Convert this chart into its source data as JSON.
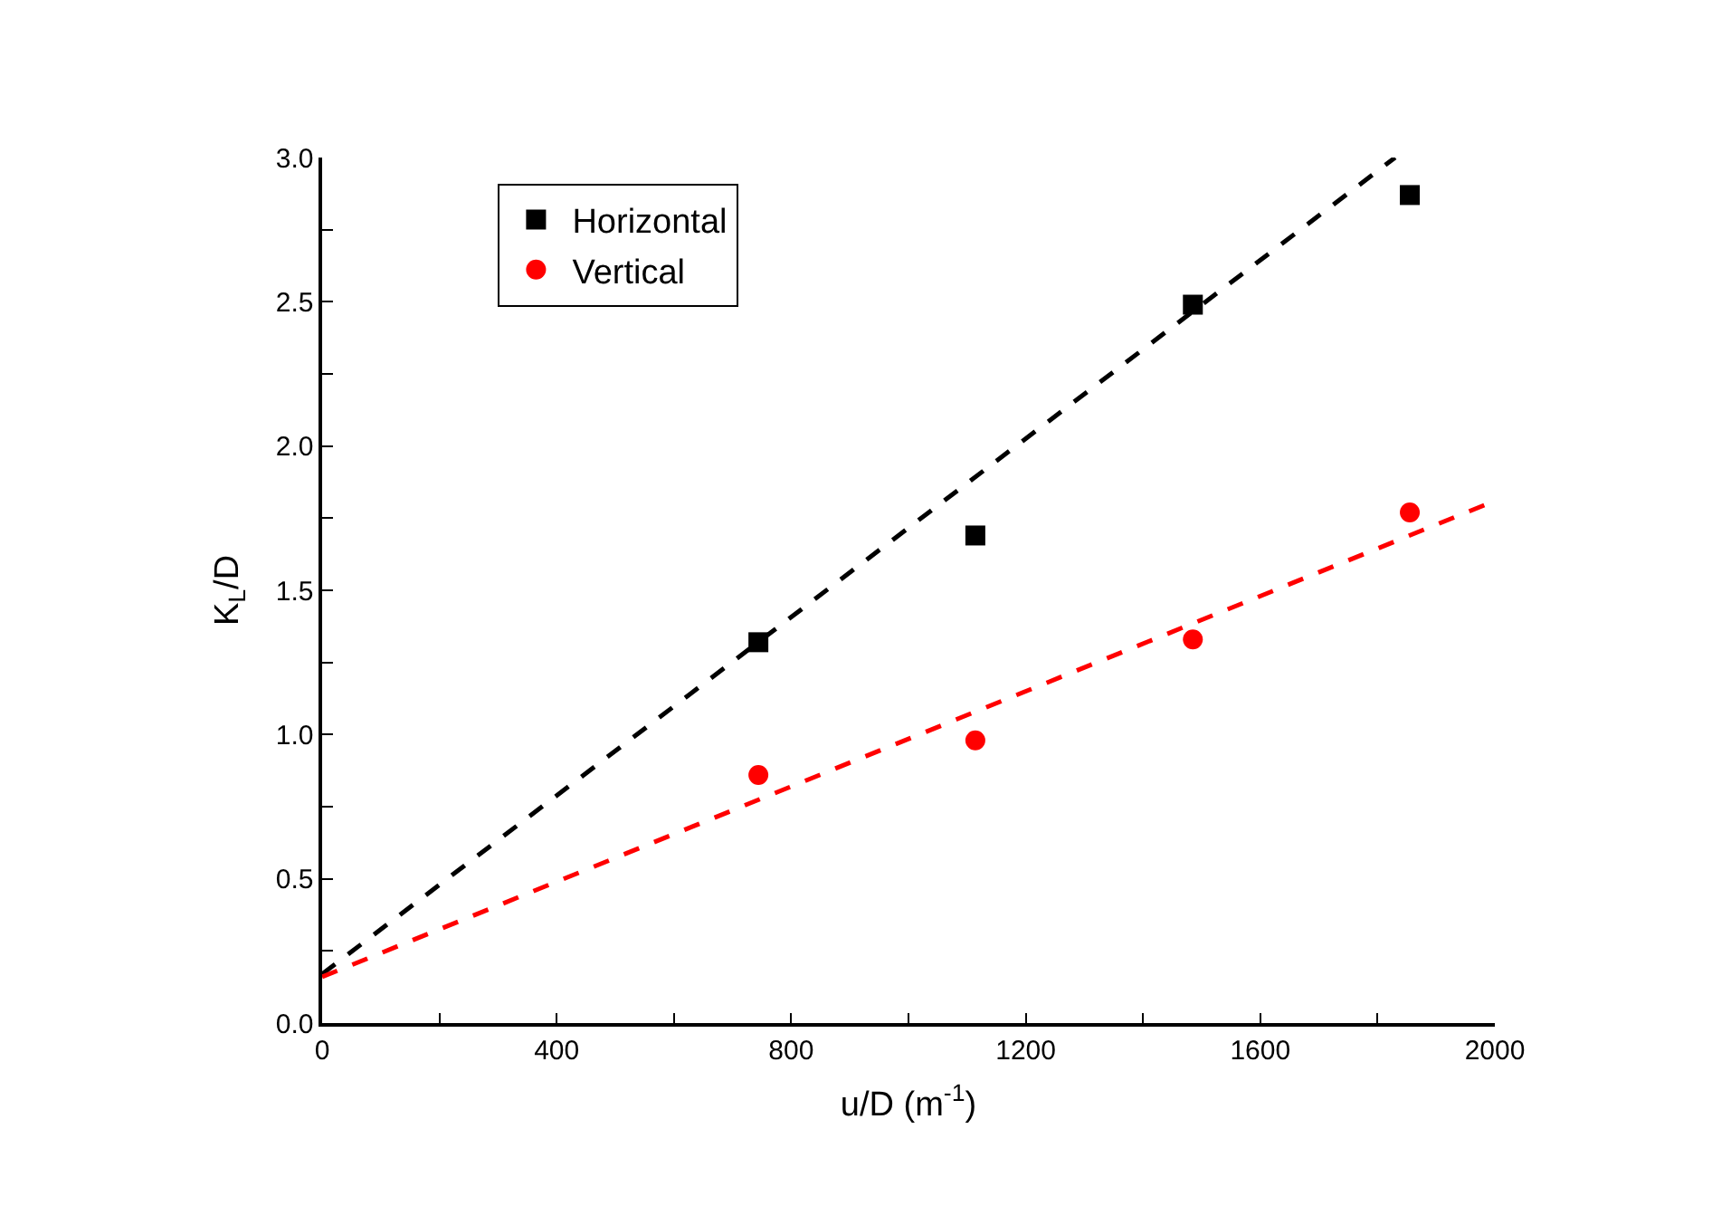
{
  "chart_data": {
    "type": "scatter",
    "xlabel": "u/D (m$^{-1}$)",
    "ylabel": "K$_{L}$/D",
    "x": [
      744,
      1114,
      1485,
      1855
    ],
    "series": [
      {
        "name": "Horizontal",
        "color": "#000000",
        "marker": "square",
        "values": [
          1.32,
          1.69,
          2.49,
          2.87
        ]
      },
      {
        "name": "Vertical",
        "color": "#ff0000",
        "marker": "circle",
        "values": [
          0.86,
          0.98,
          1.33,
          1.77
        ]
      },
      {
        "type": "line",
        "color": "#000000",
        "line_style": "dashed",
        "x": [
          0,
          1830
        ],
        "values": [
          0.17,
          3.0
        ]
      },
      {
        "type": "line",
        "color": "#ff0000",
        "line_style": "dashed",
        "x": [
          0,
          2000
        ],
        "values": [
          0.16,
          1.81
        ]
      }
    ],
    "xlim": [
      0,
      2000
    ],
    "xticks": [
      0,
      {
        "value": 200,
        "label": null
      },
      400,
      {
        "value": 600,
        "label": null
      },
      800,
      {
        "value": 1000,
        "label": null
      },
      1200,
      {
        "value": 1400,
        "label": null
      },
      1600,
      {
        "value": 1800,
        "label": null
      },
      2000
    ],
    "ylim": [
      0,
      3.0
    ],
    "yticks": [
      {
        "value": 0,
        "label": "0.0"
      },
      {
        "value": 0.25,
        "label": null
      },
      0.5,
      {
        "value": 0.75,
        "label": null
      },
      {
        "value": 1,
        "label": "1.0"
      },
      {
        "value": 1.25,
        "label": null
      },
      1.5,
      {
        "value": 1.75,
        "label": null
      },
      {
        "value": 2,
        "label": "2.0"
      },
      {
        "value": 2.25,
        "label": null
      },
      2.5,
      {
        "value": 2.75,
        "label": null
      },
      {
        "value": 3,
        "label": "3.0"
      }
    ],
    "legend": "top left"
  }
}
